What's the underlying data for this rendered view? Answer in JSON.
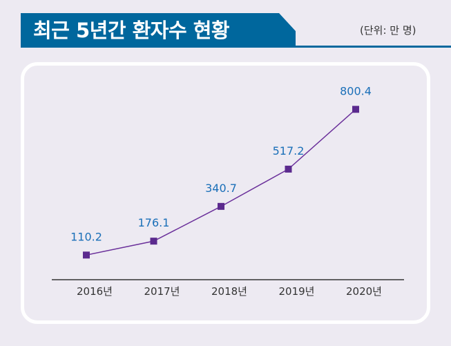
{
  "header": {
    "title": "최근 5년간 환자수 현황",
    "unit": "(단위: 만 명)"
  },
  "colors": {
    "banner": "#00679d",
    "line": "#6a2f9a",
    "marker": "#5b2a8e",
    "label": "#1a6fb8"
  },
  "chart_data": {
    "type": "line",
    "title": "최근 5년간 환자수 현황",
    "categories": [
      "2016년",
      "2017년",
      "2018년",
      "2019년",
      "2020년"
    ],
    "values": [
      110.2,
      176.1,
      340.7,
      517.2,
      800.4
    ],
    "value_labels": [
      "110.2",
      "176.1",
      "340.7",
      "517.2",
      "800.4"
    ],
    "unit": "만 명",
    "ylim": [
      0,
      900
    ],
    "grid": false
  }
}
